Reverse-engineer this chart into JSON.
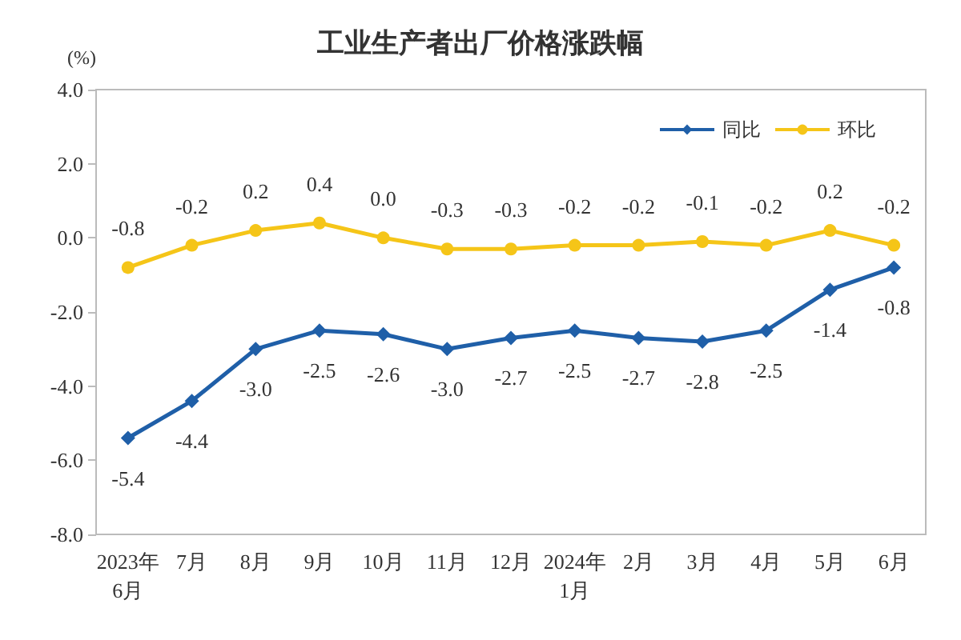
{
  "chart_data": {
    "type": "line",
    "title": "工业生产者出厂价格涨跌幅",
    "ylabel": "(%)",
    "categories": [
      "2023年\n6月",
      "7月",
      "8月",
      "9月",
      "10月",
      "11月",
      "12月",
      "2024年\n1月",
      "2月",
      "3月",
      "4月",
      "5月",
      "6月"
    ],
    "series": [
      {
        "name": "同比",
        "color": "#1f5fa8",
        "marker": "diamond",
        "values": [
          -5.4,
          -4.4,
          -3.0,
          -2.5,
          -2.6,
          -3.0,
          -2.7,
          -2.5,
          -2.7,
          -2.8,
          -2.5,
          -1.4,
          -0.8
        ],
        "value_labels": [
          "-5.4",
          "-4.4",
          "-3.0",
          "-2.5",
          "-2.6",
          "-3.0",
          "-2.7",
          "-2.5",
          "-2.7",
          "-2.8",
          "-2.5",
          "-1.4",
          "-0.8"
        ]
      },
      {
        "name": "环比",
        "color": "#f5c518",
        "marker": "circle",
        "values": [
          -0.8,
          -0.2,
          0.2,
          0.4,
          0.0,
          -0.3,
          -0.3,
          -0.2,
          -0.2,
          -0.1,
          -0.2,
          0.2,
          -0.2
        ],
        "value_labels": [
          "-0.8",
          "-0.2",
          "0.2",
          "0.4",
          "0.0",
          "-0.3",
          "-0.3",
          "-0.2",
          "-0.2",
          "-0.1",
          "-0.2",
          "0.2",
          "-0.2"
        ]
      }
    ],
    "ylim": [
      -8,
      4
    ],
    "yticks": [
      {
        "value": -8,
        "label": "-8.0"
      },
      {
        "value": -6,
        "label": "-6.0"
      },
      {
        "value": -4,
        "label": "-4.0"
      },
      {
        "value": -2,
        "label": "-2.0"
      },
      {
        "value": 0,
        "label": "0.0"
      },
      {
        "value": 2,
        "label": "2.0"
      },
      {
        "value": 4,
        "label": "4.0"
      }
    ],
    "grid": false,
    "legend": "top right"
  }
}
